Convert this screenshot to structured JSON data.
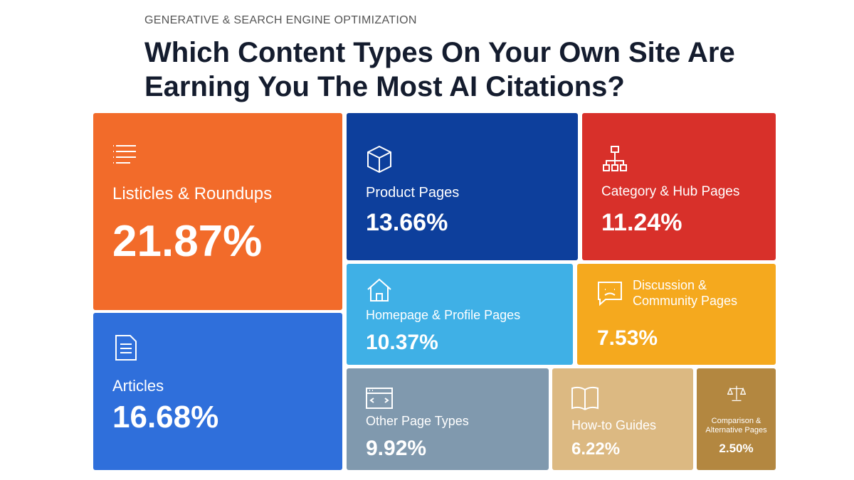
{
  "chart_data": {
    "type": "treemap",
    "subtitle": "GENERATIVE & SEARCH ENGINE OPTIMIZATION",
    "title": "Which Content Types On Your Own Site Are Earning You The Most AI Citations?",
    "categories": [
      "Listicles & Roundups",
      "Articles",
      "Product Pages",
      "Category & Hub Pages",
      "Homepage & Profile Pages",
      "Discussion & Community Pages",
      "Other Page Types",
      "How-to Guides",
      "Comparison & Alternative Pages"
    ],
    "values": [
      21.87,
      16.68,
      13.66,
      11.24,
      10.37,
      7.53,
      9.92,
      6.22,
      2.5
    ],
    "value_labels": [
      "21.87%",
      "16.68%",
      "13.66%",
      "11.24%",
      "10.37%",
      "7.53%",
      "9.92%",
      "6.22%",
      "2.50%"
    ],
    "colors": [
      "#f26b2a",
      "#2f6fdb",
      "#0d3f9c",
      "#d8302a",
      "#3fb0e6",
      "#f5a91e",
      "#8099ae",
      "#dcb982",
      "#b38740"
    ]
  }
}
